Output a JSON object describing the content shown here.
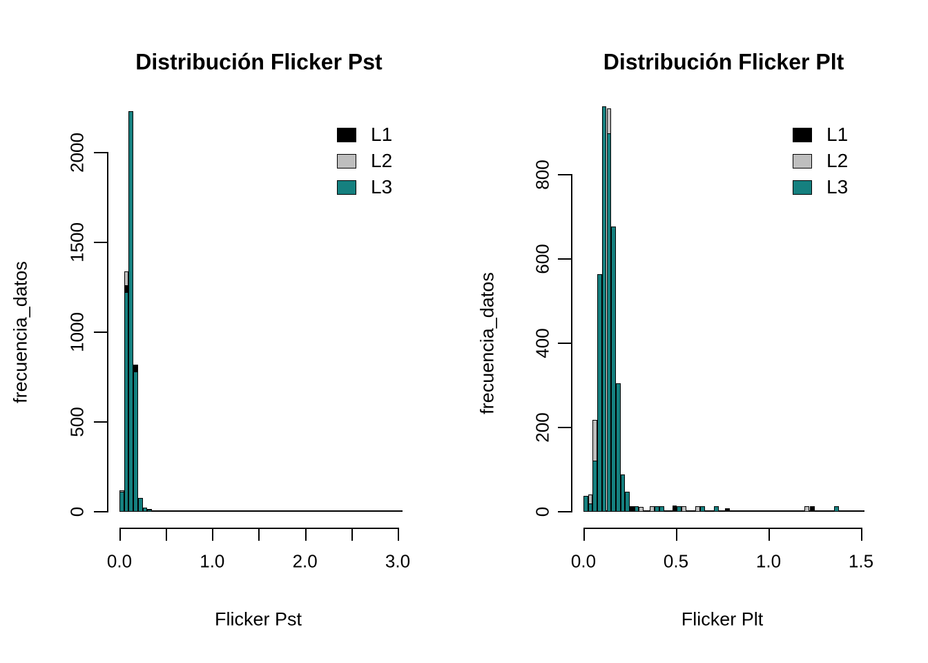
{
  "figure": {
    "background": "#ffffff"
  },
  "colors": {
    "L1": "#000000",
    "L2": "#bebebe",
    "L3": "#15807f"
  },
  "legend": {
    "items": [
      {
        "label": "L1",
        "color_key": "L1"
      },
      {
        "label": "L2",
        "color_key": "L2"
      },
      {
        "label": "L3",
        "color_key": "L3"
      }
    ]
  },
  "chart_data": [
    {
      "type": "bar",
      "subtype": "overlaid-histogram",
      "title": "Distribución Flicker Pst",
      "xlabel": "Flicker Pst",
      "ylabel": "frecuencia_datos",
      "xlim": [
        0.0,
        3.05
      ],
      "ylim": [
        0,
        2000
      ],
      "x_ticks": [
        0.0,
        0.5,
        1.0,
        1.5,
        2.0,
        2.5,
        3.0
      ],
      "x_tick_labels": [
        {
          "value": 0.0,
          "label": "0.0"
        },
        {
          "value": 1.0,
          "label": "1.0"
        },
        {
          "value": 2.0,
          "label": "2.0"
        },
        {
          "value": 3.0,
          "label": "3.0"
        }
      ],
      "y_ticks": [
        {
          "value": 0,
          "label": "0"
        },
        {
          "value": 500,
          "label": "500"
        },
        {
          "value": 1000,
          "label": "1000"
        },
        {
          "value": 1500,
          "label": "1500"
        },
        {
          "value": 2000,
          "label": "2000"
        }
      ],
      "bin_width": 0.05,
      "baseline_extent": 3.05,
      "grid": false,
      "legend_position": "top-right-inside",
      "bars": [
        {
          "x": 0.0,
          "segments": [
            {
              "s": "L2",
              "v": 120
            },
            {
              "s": "L3",
              "v": 110
            }
          ]
        },
        {
          "x": 0.05,
          "segments": [
            {
              "s": "L2",
              "v": 1338
            },
            {
              "s": "L1",
              "v": 1262
            },
            {
              "s": "L3",
              "v": 1223
            }
          ]
        },
        {
          "x": 0.1,
          "segments": [
            {
              "s": "L3",
              "v": 2231
            }
          ]
        },
        {
          "x": 0.15,
          "segments": [
            {
              "s": "L1",
              "v": 820
            },
            {
              "s": "L3",
              "v": 781
            }
          ]
        },
        {
          "x": 0.2,
          "segments": [
            {
              "s": "L3",
              "v": 77
            }
          ]
        },
        {
          "x": 0.25,
          "segments": [
            {
              "s": "L3",
              "v": 25
            }
          ]
        },
        {
          "x": 0.3,
          "segments": [
            {
              "s": "L1",
              "v": 14
            },
            {
              "s": "L3",
              "v": 10
            }
          ]
        },
        {
          "x": 0.35,
          "segments": [
            {
              "s": "L1",
              "v": 8
            }
          ]
        },
        {
          "x": 0.4,
          "segments": [
            {
              "s": "L1",
              "v": 6
            }
          ]
        },
        {
          "x": 0.45,
          "segments": [
            {
              "s": "L1",
              "v": 5
            }
          ]
        }
      ]
    },
    {
      "type": "bar",
      "subtype": "overlaid-histogram",
      "title": "Distribución Flicker Plt",
      "xlabel": "Flicker Plt",
      "ylabel": "frecuencia_datos",
      "xlim": [
        0.0,
        1.52
      ],
      "ylim": [
        0,
        800
      ],
      "x_ticks": [
        0.0,
        0.5,
        1.0,
        1.5
      ],
      "x_tick_labels": [
        {
          "value": 0.0,
          "label": "0.0"
        },
        {
          "value": 0.5,
          "label": "0.5"
        },
        {
          "value": 1.0,
          "label": "1.0"
        },
        {
          "value": 1.5,
          "label": "1.5"
        }
      ],
      "y_ticks": [
        {
          "value": 0,
          "label": "0"
        },
        {
          "value": 200,
          "label": "200"
        },
        {
          "value": 400,
          "label": "400"
        },
        {
          "value": 600,
          "label": "600"
        },
        {
          "value": 800,
          "label": "800"
        }
      ],
      "bin_width": 0.025,
      "baseline_extent": 1.52,
      "grid": false,
      "legend_position": "top-right-inside",
      "bars": [
        {
          "x": 0.0,
          "segments": [
            {
              "s": "L3",
              "v": 38
            }
          ]
        },
        {
          "x": 0.025,
          "segments": [
            {
              "s": "L2",
              "v": 41
            },
            {
              "s": "L3",
              "v": 20
            }
          ]
        },
        {
          "x": 0.05,
          "segments": [
            {
              "s": "L2",
              "v": 218
            },
            {
              "s": "L3",
              "v": 121
            }
          ]
        },
        {
          "x": 0.075,
          "segments": [
            {
              "s": "L3",
              "v": 564
            }
          ]
        },
        {
          "x": 0.1,
          "segments": [
            {
              "s": "L3",
              "v": 962
            }
          ]
        },
        {
          "x": 0.125,
          "segments": [
            {
              "s": "L2",
              "v": 958
            },
            {
              "s": "L3",
              "v": 898
            }
          ]
        },
        {
          "x": 0.15,
          "segments": [
            {
              "s": "L3",
              "v": 677
            }
          ]
        },
        {
          "x": 0.175,
          "segments": [
            {
              "s": "L3",
              "v": 305
            }
          ]
        },
        {
          "x": 0.2,
          "segments": [
            {
              "s": "L3",
              "v": 89
            }
          ]
        },
        {
          "x": 0.225,
          "segments": [
            {
              "s": "L3",
              "v": 48
            }
          ]
        },
        {
          "x": 0.25,
          "segments": [
            {
              "s": "L1",
              "v": 13
            }
          ]
        },
        {
          "x": 0.275,
          "segments": [
            {
              "s": "L3",
              "v": 13
            }
          ]
        },
        {
          "x": 0.3,
          "segments": [
            {
              "s": "L2",
              "v": 12
            }
          ]
        },
        {
          "x": 0.36,
          "segments": [
            {
              "s": "L2",
              "v": 13
            }
          ]
        },
        {
          "x": 0.385,
          "segments": [
            {
              "s": "L3",
              "v": 13
            }
          ]
        },
        {
          "x": 0.41,
          "segments": [
            {
              "s": "L3",
              "v": 13
            }
          ]
        },
        {
          "x": 0.48,
          "segments": [
            {
              "s": "L1",
              "v": 15
            }
          ]
        },
        {
          "x": 0.505,
          "segments": [
            {
              "s": "L3",
              "v": 13
            }
          ]
        },
        {
          "x": 0.53,
          "segments": [
            {
              "s": "L2",
              "v": 13
            }
          ]
        },
        {
          "x": 0.605,
          "segments": [
            {
              "s": "L2",
              "v": 13
            }
          ]
        },
        {
          "x": 0.63,
          "segments": [
            {
              "s": "L3",
              "v": 13
            }
          ]
        },
        {
          "x": 0.705,
          "segments": [
            {
              "s": "L3",
              "v": 13
            }
          ]
        },
        {
          "x": 0.765,
          "segments": [
            {
              "s": "L1",
              "v": 8
            }
          ]
        },
        {
          "x": 1.195,
          "segments": [
            {
              "s": "L2",
              "v": 13
            }
          ]
        },
        {
          "x": 1.225,
          "segments": [
            {
              "s": "L1",
              "v": 13
            }
          ]
        },
        {
          "x": 1.355,
          "segments": [
            {
              "s": "L3",
              "v": 13
            }
          ]
        }
      ]
    }
  ]
}
